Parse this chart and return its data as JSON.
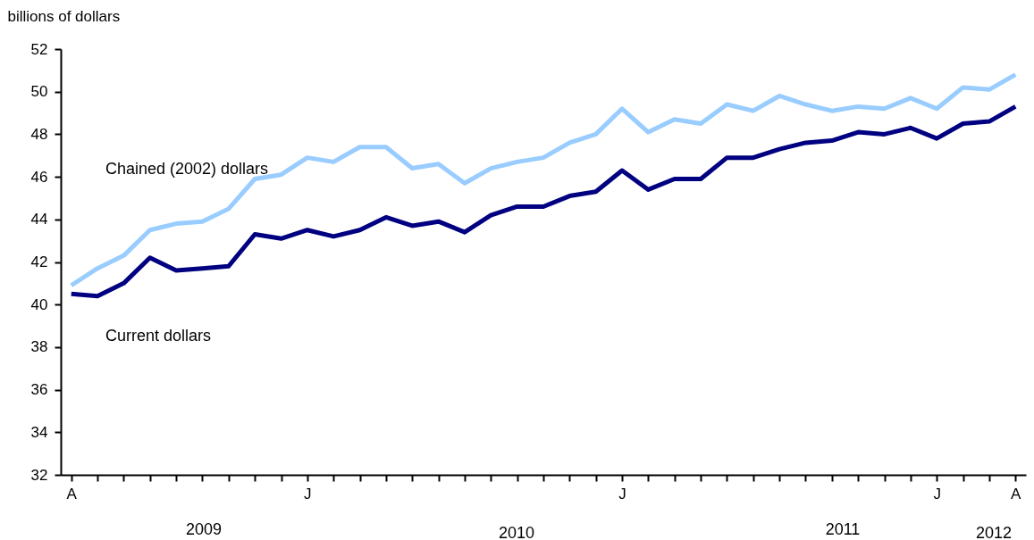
{
  "chart_data": {
    "type": "line",
    "ylabel": "billions of dollars",
    "categories": [
      "A",
      null,
      null,
      null,
      null,
      null,
      null,
      null,
      null,
      "J",
      null,
      null,
      null,
      null,
      null,
      null,
      null,
      null,
      null,
      null,
      null,
      "J",
      null,
      null,
      null,
      null,
      null,
      null,
      null,
      null,
      null,
      null,
      null,
      "J",
      null,
      null,
      "A"
    ],
    "series": [
      {
        "name": "Chained (2002) dollars",
        "color": "#99ccff",
        "values": [
          40.9,
          41.7,
          42.3,
          43.5,
          43.8,
          43.9,
          44.5,
          45.9,
          46.1,
          46.9,
          46.7,
          47.4,
          47.4,
          46.4,
          46.6,
          45.7,
          46.4,
          46.7,
          46.9,
          47.6,
          48.0,
          49.2,
          48.1,
          48.7,
          48.5,
          49.4,
          49.1,
          49.8,
          49.4,
          49.1,
          49.3,
          49.2,
          49.7,
          49.2,
          50.2,
          50.1,
          50.8
        ]
      },
      {
        "name": "Current dollars",
        "color": "#000080",
        "values": [
          40.5,
          40.4,
          41.0,
          42.2,
          41.6,
          41.7,
          41.8,
          43.3,
          43.1,
          43.5,
          43.2,
          43.5,
          44.1,
          43.7,
          43.9,
          43.4,
          44.2,
          44.6,
          44.6,
          45.1,
          45.3,
          46.3,
          45.4,
          45.9,
          45.9,
          46.9,
          46.9,
          47.3,
          47.6,
          47.7,
          48.1,
          48.0,
          48.3,
          47.8,
          48.5,
          48.6,
          49.3
        ]
      }
    ],
    "ylim": [
      32,
      52
    ],
    "yticks": [
      32,
      34,
      36,
      38,
      40,
      42,
      44,
      46,
      48,
      50,
      52
    ],
    "annotations": [
      "2009",
      "2010",
      "2011",
      "2012"
    ],
    "grid": false,
    "marker": "none",
    "line_style": "solid"
  }
}
